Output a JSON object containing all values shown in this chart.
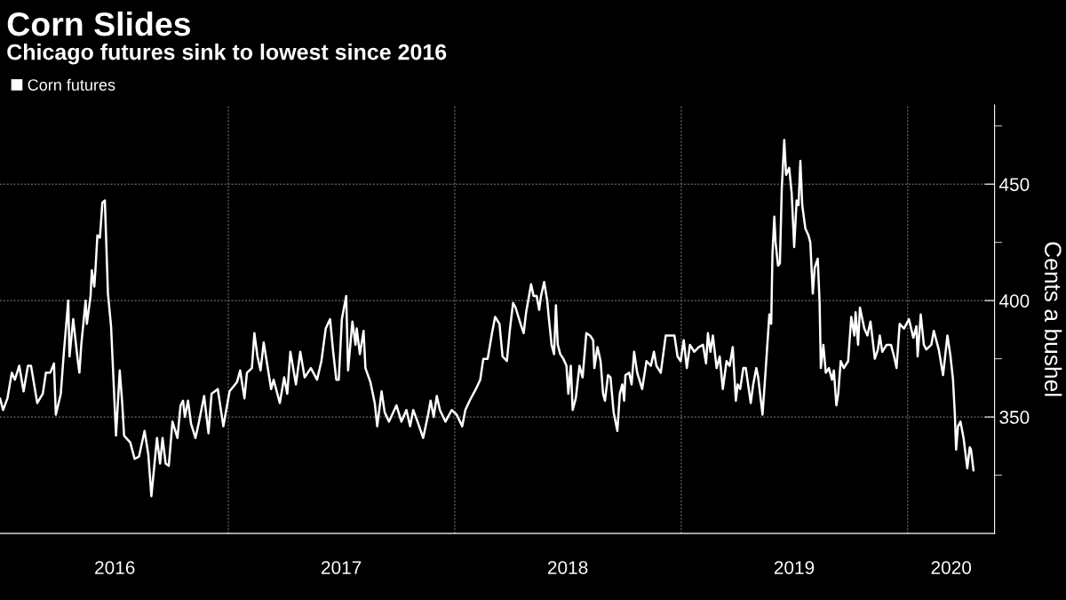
{
  "chart_data": {
    "type": "line",
    "title": "Corn Slides",
    "subtitle": "Chicago futures sink to lowest since 2016",
    "ylabel": "Cents a bushel",
    "x": [
      "2015-12-30",
      "2016-01-04",
      "2016-01-11",
      "2016-01-18",
      "2016-01-23",
      "2016-01-30",
      "2016-02-06",
      "2016-02-13",
      "2016-02-18",
      "2016-02-28",
      "2016-03-08",
      "2016-03-13",
      "2016-03-20",
      "2016-03-26",
      "2016-03-29",
      "2016-04-06",
      "2016-04-11",
      "2016-04-18",
      "2016-04-20",
      "2016-04-26",
      "2016-05-03",
      "2016-05-06",
      "2016-05-09",
      "2016-05-16",
      "2016-05-18",
      "2016-05-24",
      "2016-05-26",
      "2016-05-30",
      "2016-06-01",
      "2016-06-04",
      "2016-06-08",
      "2016-06-12",
      "2016-06-16",
      "2016-06-21",
      "2016-06-26",
      "2016-07-04",
      "2016-07-10",
      "2016-07-14",
      "2016-07-17",
      "2016-07-27",
      "2016-08-03",
      "2016-08-10",
      "2016-08-19",
      "2016-08-25",
      "2016-08-30",
      "2016-09-08",
      "2016-09-13",
      "2016-09-17",
      "2016-09-22",
      "2016-09-27",
      "2016-10-03",
      "2016-10-11",
      "2016-10-16",
      "2016-10-20",
      "2016-10-23",
      "2016-10-28",
      "2016-11-02",
      "2016-11-09",
      "2016-11-14",
      "2016-11-23",
      "2016-11-30",
      "2016-12-05",
      "2016-12-15",
      "2016-12-24",
      "2017-01-03",
      "2017-01-15",
      "2017-01-20",
      "2017-01-27",
      "2017-01-31",
      "2017-02-08",
      "2017-02-12",
      "2017-02-17",
      "2017-02-22",
      "2017-02-27",
      "2017-03-11",
      "2017-03-15",
      "2017-03-25",
      "2017-04-01",
      "2017-04-06",
      "2017-04-11",
      "2017-04-20",
      "2017-04-27",
      "2017-05-04",
      "2017-05-14",
      "2017-05-24",
      "2017-05-31",
      "2017-06-07",
      "2017-06-14",
      "2017-06-19",
      "2017-06-24",
      "2017-06-28",
      "2017-07-03",
      "2017-07-10",
      "2017-07-13",
      "2017-07-20",
      "2017-07-25",
      "2017-07-27",
      "2017-08-01",
      "2017-08-07",
      "2017-08-10",
      "2017-08-18",
      "2017-08-25",
      "2017-08-29",
      "2017-09-05",
      "2017-09-10",
      "2017-09-17",
      "2017-09-29",
      "2017-10-07",
      "2017-10-15",
      "2017-10-21",
      "2017-10-26",
      "2017-11-02",
      "2017-11-11",
      "2017-11-19",
      "2017-11-23",
      "2017-11-28",
      "2017-12-03",
      "2017-12-08",
      "2017-12-17",
      "2017-12-27",
      "2018-01-04",
      "2018-01-13",
      "2018-01-18",
      "2018-01-25",
      "2018-02-04",
      "2018-02-11",
      "2018-02-16",
      "2018-02-23",
      "2018-03-02",
      "2018-03-07",
      "2018-03-14",
      "2018-03-19",
      "2018-03-26",
      "2018-03-31",
      "2018-04-05",
      "2018-04-09",
      "2018-04-17",
      "2018-04-22",
      "2018-04-26",
      "2018-05-04",
      "2018-05-08",
      "2018-05-13",
      "2018-05-17",
      "2018-05-20",
      "2018-05-25",
      "2018-05-30",
      "2018-06-01",
      "2018-06-06",
      "2018-06-10",
      "2018-06-13",
      "2018-06-16",
      "2018-06-20",
      "2018-06-25",
      "2018-06-30",
      "2018-07-03",
      "2018-07-07",
      "2018-07-10",
      "2018-07-15",
      "2018-07-21",
      "2018-07-26",
      "2018-08-01",
      "2018-08-07",
      "2018-08-12",
      "2018-08-14",
      "2018-08-19",
      "2018-08-24",
      "2018-08-28",
      "2018-08-31",
      "2018-09-05",
      "2018-09-09",
      "2018-09-14",
      "2018-09-20",
      "2018-09-24",
      "2018-09-28",
      "2018-10-01",
      "2018-10-03",
      "2018-10-09",
      "2018-10-13",
      "2018-10-17",
      "2018-10-22",
      "2018-10-30",
      "2018-11-06",
      "2018-11-13",
      "2018-11-18",
      "2018-11-22",
      "2018-11-29",
      "2018-12-07",
      "2018-12-14",
      "2018-12-21",
      "2018-12-26",
      "2018-12-31",
      "2019-01-05",
      "2019-01-10",
      "2019-01-15",
      "2019-01-22",
      "2019-01-29",
      "2019-02-05",
      "2019-02-10",
      "2019-02-13",
      "2019-02-17",
      "2019-02-21",
      "2019-02-27",
      "2019-03-04",
      "2019-03-09",
      "2019-03-15",
      "2019-03-20",
      "2019-03-25",
      "2019-03-30",
      "2019-04-02",
      "2019-04-06",
      "2019-04-11",
      "2019-04-15",
      "2019-04-23",
      "2019-04-27",
      "2019-05-02",
      "2019-05-05",
      "2019-05-12",
      "2019-05-17",
      "2019-05-23",
      "2019-05-26",
      "2019-05-28",
      "2019-05-31",
      "2019-06-02",
      "2019-06-06",
      "2019-06-09",
      "2019-06-12",
      "2019-06-16",
      "2019-06-19",
      "2019-06-24",
      "2019-06-28",
      "2019-07-02",
      "2019-07-06",
      "2019-07-09",
      "2019-07-12",
      "2019-07-15",
      "2019-07-20",
      "2019-07-25",
      "2019-07-28",
      "2019-08-01",
      "2019-08-04",
      "2019-08-09",
      "2019-08-12",
      "2019-08-14",
      "2019-08-18",
      "2019-08-22",
      "2019-08-27",
      "2019-09-01",
      "2019-09-04",
      "2019-09-08",
      "2019-09-11",
      "2019-09-15",
      "2019-09-20",
      "2019-09-27",
      "2019-10-02",
      "2019-10-07",
      "2019-10-09",
      "2019-10-13",
      "2019-10-16",
      "2019-10-23",
      "2019-10-28",
      "2019-11-02",
      "2019-11-09",
      "2019-11-14",
      "2019-11-17",
      "2019-11-21",
      "2019-11-28",
      "2019-12-05",
      "2019-12-10",
      "2019-12-14",
      "2019-12-19",
      "2019-12-26",
      "2020-01-03",
      "2020-01-10",
      "2020-01-15",
      "2020-01-17",
      "2020-01-22",
      "2020-01-27",
      "2020-01-31",
      "2020-02-08",
      "2020-02-12",
      "2020-02-16",
      "2020-02-20",
      "2020-02-27",
      "2020-03-05",
      "2020-03-10",
      "2020-03-14",
      "2020-03-17",
      "2020-03-19",
      "2020-03-22",
      "2020-03-26",
      "2020-03-31",
      "2020-04-06",
      "2020-04-10",
      "2020-04-12",
      "2020-04-16"
    ],
    "series": [
      {
        "name": "Corn futures",
        "color": "#ffffff",
        "values": [
          358,
          353,
          358,
          369,
          366,
          372,
          361,
          372,
          372,
          356,
          360,
          369,
          369,
          373,
          351,
          360,
          378,
          400,
          376,
          392,
          375,
          369,
          381,
          400,
          390,
          402,
          413,
          406,
          414,
          428,
          427,
          442,
          443,
          403,
          389,
          342,
          370,
          356,
          342,
          339,
          332,
          333,
          344,
          334,
          316,
          341,
          330,
          341,
          330,
          329,
          348,
          341,
          355,
          357,
          350,
          357,
          347,
          341,
          347,
          359,
          343,
          360,
          362,
          346,
          361,
          365,
          370,
          358,
          369,
          371,
          386,
          376,
          370,
          382,
          362,
          366,
          356,
          367,
          360,
          378,
          364,
          378,
          367,
          371,
          366,
          374,
          388,
          392,
          378,
          366,
          366,
          392,
          402,
          370,
          391,
          381,
          388,
          377,
          387,
          371,
          365,
          356,
          346,
          361,
          352,
          348,
          355,
          348,
          353,
          346,
          353,
          348,
          341,
          351,
          357,
          350,
          359,
          353,
          348,
          353,
          351,
          346,
          353,
          357,
          362,
          366,
          375,
          375,
          386,
          393,
          390,
          376,
          374,
          388,
          399,
          397,
          390,
          386,
          395,
          407,
          402,
          402,
          396,
          402,
          408,
          400,
          394,
          381,
          377,
          398,
          381,
          377,
          375,
          372,
          360,
          372,
          353,
          358,
          372,
          367,
          386,
          385,
          383,
          371,
          380,
          374,
          360,
          357,
          368,
          367,
          352,
          344,
          360,
          364,
          357,
          368,
          369,
          364,
          378,
          369,
          362,
          374,
          372,
          378,
          372,
          369,
          385,
          385,
          385,
          376,
          374,
          383,
          371,
          381,
          378,
          380,
          381,
          373,
          386,
          378,
          385,
          371,
          376,
          362,
          374,
          372,
          380,
          357,
          364,
          362,
          371,
          371,
          356,
          364,
          371,
          367,
          351,
          370,
          394,
          390,
          420,
          436,
          425,
          415,
          416,
          448,
          469,
          454,
          457,
          446,
          423,
          443,
          441,
          460,
          441,
          431,
          428,
          425,
          403,
          414,
          418,
          399,
          371,
          381,
          369,
          371,
          366,
          370,
          355,
          360,
          374,
          371,
          374,
          393,
          385,
          395,
          381,
          397,
          388,
          385,
          391,
          375,
          379,
          385,
          378,
          381,
          381,
          376,
          371,
          390,
          388,
          392,
          384,
          389,
          376,
          394,
          381,
          379,
          381,
          387,
          383,
          379,
          368,
          385,
          376,
          366,
          351,
          336,
          346,
          348,
          341,
          328,
          337,
          336,
          327
        ]
      }
    ],
    "xlim": [
      "2015-12-30",
      "2020-05-20"
    ],
    "xticks": [
      {
        "value": "2016-07-02",
        "label": "2016"
      },
      {
        "value": "2017-01-01",
        "label": null
      },
      {
        "value": "2017-07-02",
        "label": "2017"
      },
      {
        "value": "2018-01-01",
        "label": null
      },
      {
        "value": "2018-07-02",
        "label": "2018"
      },
      {
        "value": "2019-01-01",
        "label": null
      },
      {
        "value": "2019-07-02",
        "label": "2019"
      },
      {
        "value": "2020-01-01",
        "label": null
      },
      {
        "value": "2020-03-11",
        "label": "2020"
      }
    ],
    "ylim": [
      300,
      484
    ],
    "yticks": [
      {
        "value": 325,
        "label": null
      },
      350,
      {
        "value": 375,
        "label": null
      },
      400,
      {
        "value": 425,
        "label": null
      },
      450,
      {
        "value": 475,
        "label": null
      }
    ],
    "grid": true,
    "legend": "top left"
  }
}
